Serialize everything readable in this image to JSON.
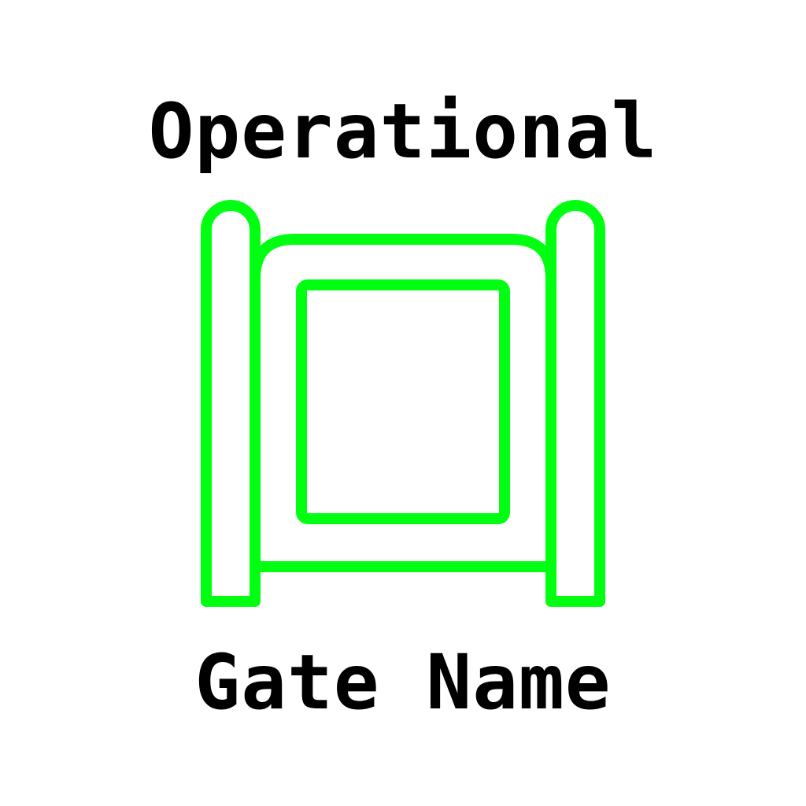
{
  "status": {
    "label": "Operational",
    "color": "#00ff11"
  },
  "gate": {
    "name": "Gate Name",
    "icon": "gate-icon"
  }
}
